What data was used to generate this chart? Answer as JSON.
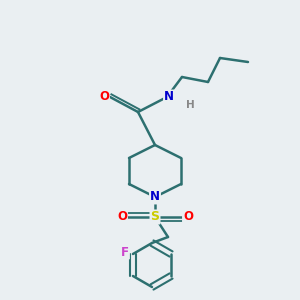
{
  "background_color": "#eaeff2",
  "bond_color": "#2d7070",
  "atom_colors": {
    "O": "#ff0000",
    "N": "#0000cc",
    "S": "#cccc00",
    "F": "#cc44cc",
    "H": "#888888",
    "C": "#2d7070"
  },
  "figsize": [
    3.0,
    3.0
  ],
  "dpi": 100
}
